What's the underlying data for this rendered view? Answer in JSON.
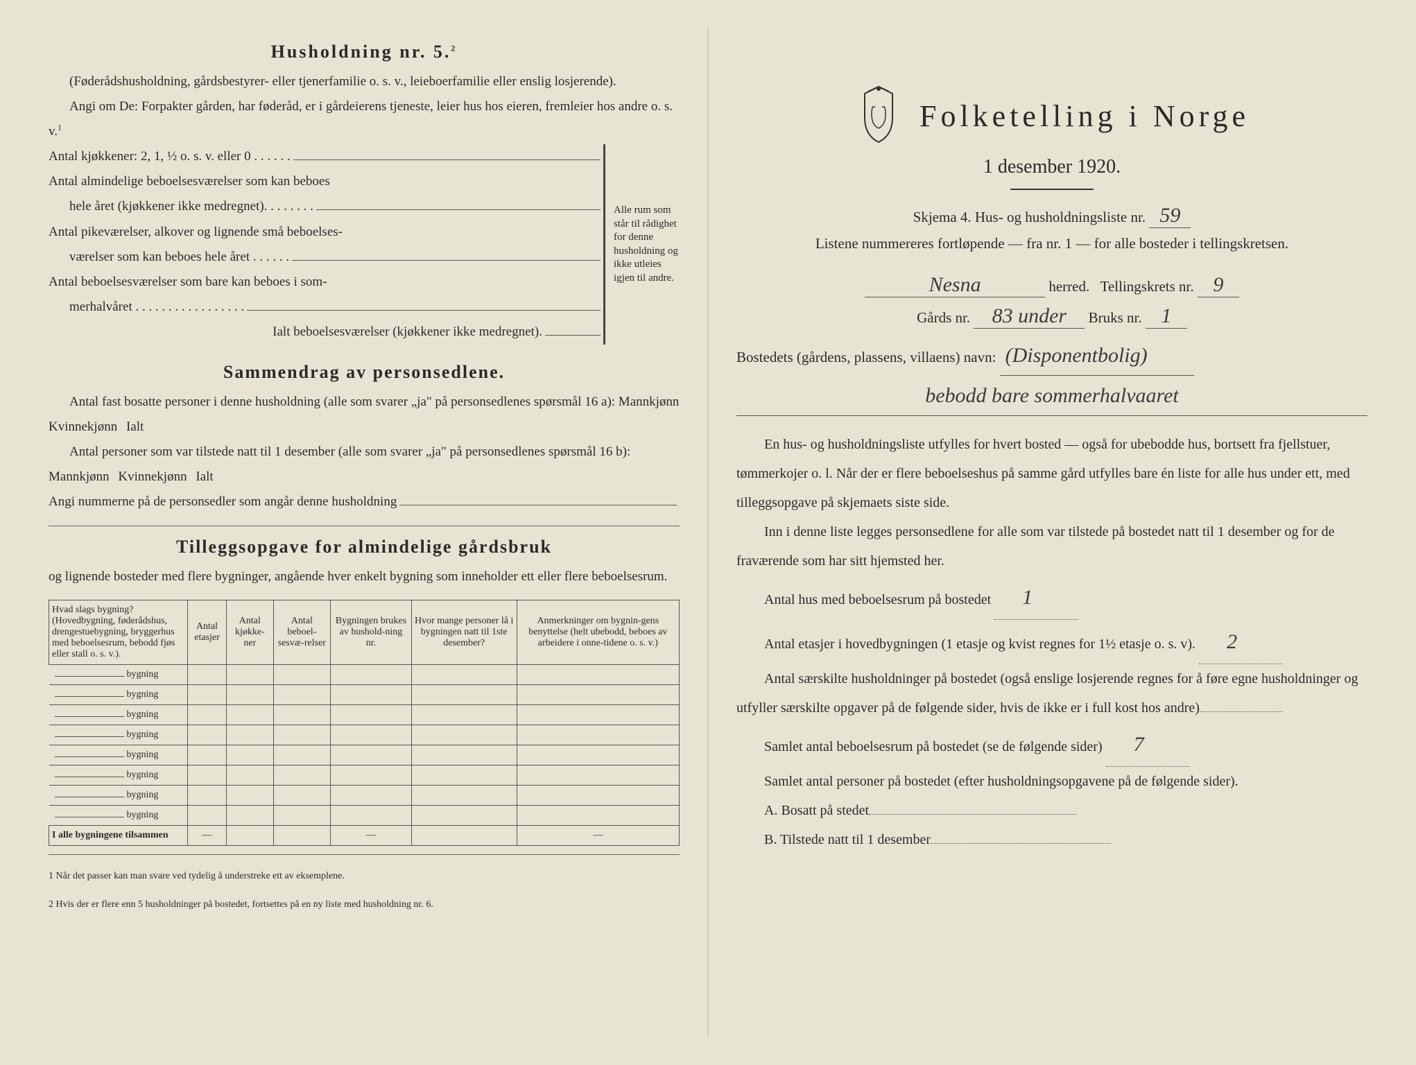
{
  "background_color": "#e8e4d4",
  "text_color": "#2a2a2a",
  "left": {
    "heading5": "Husholdning nr. 5.",
    "heading5_sup": "2",
    "note5": "(Føderådshusholdning, gårdsbestyrer- eller tjenerfamilie o. s. v., leieboerfamilie eller enslig losjerende).",
    "angi_om": "Angi om De: Forpakter gården, har føderåd, er i gårdeierens tjeneste, leier hus hos eieren, fremleier hos andre o. s. v.",
    "angi_sup": "1",
    "kjokkener": "Antal kjøkkener: 2, 1, ½ o. s. v. eller 0 . . . . . .",
    "almindelige1": "Antal almindelige beboelsesværelser som kan beboes",
    "almindelige2": "hele året (kjøkkener ikke medregnet). . . . . . . .",
    "pike1": "Antal pikeværelser, alkover og lignende små beboelses-",
    "pike2": "værelser som kan beboes hele året . . . . . .",
    "sommer1": "Antal beboelsesværelser som bare kan beboes i som-",
    "sommer2": "merhalvåret . . . . . . . . . . . . . . . . .",
    "ialt": "Ialt beboelsesværelser  (kjøkkener ikke medregnet).",
    "bracket_text": "Alle rum som står til rådighet for denne husholdning og ikke utleies igjen til andre.",
    "sammendrag": "Sammendrag av personsedlene.",
    "samm1": "Antal fast bosatte personer i denne husholdning (alle som svarer „ja\" på personsedlenes spørsmål 16 a): Mannkjønn",
    "kvinne": "Kvinnekjønn",
    "ialt_lbl": "Ialt",
    "samm2": "Antal personer som var tilstede natt til 1 desember (alle som svarer „ja\" på personsedlenes spørsmål 16 b): Mannkjønn",
    "angi_num": "Angi nummerne på de personsedler som angår denne husholdning",
    "tillegg_title": "Tilleggsopgave for almindelige gårdsbruk",
    "tillegg_sub": "og lignende bosteder med flere bygninger, angående hver enkelt bygning som inneholder ett eller flere beboelsesrum.",
    "table": {
      "headers": [
        "Hvad slags bygning?\n(Hovedbygning, føderådshus, drengestuebygning, bryggerhus med beboelsesrum, bebodd fjøs eller stall o. s. v.).",
        "Antal etasjer",
        "Antal kjøkke-ner",
        "Antal beboel-sesvæ-relser",
        "Bygningen brukes av hushold-ning nr.",
        "Hvor mange personer lå i bygningen natt til 1ste desember?",
        "Anmerkninger om bygnin-gens benyttelse (helt ubebodd, beboes av arbeidere i onne-tidene o. s. v.)"
      ],
      "row_label": "bygning",
      "rows": 8,
      "total_label": "I alle bygningene tilsammen",
      "total_cells": [
        "—",
        "",
        "",
        "—",
        "",
        "—"
      ]
    },
    "footnote1": "1   Når det passer kan man svare ved tydelig å understreke ett av eksemplene.",
    "footnote2": "2   Hvis der er flere enn 5 husholdninger på bostedet, fortsettes på en ny liste med husholdning nr. 6."
  },
  "right": {
    "title": "Folketelling  i  Norge",
    "date": "1 desember 1920.",
    "skjema": "Skjema 4.   Hus- og husholdningsliste nr.",
    "skjema_val": "59",
    "listene": "Listene nummereres fortløpende — fra nr. 1 — for alle bosteder i tellingskretsen.",
    "herred_val": "Nesna",
    "herred_lbl": "herred.",
    "tellingskrets": "Tellingskrets nr.",
    "tellingskrets_val": "9",
    "gards": "Gårds nr.",
    "gards_val": "83 under",
    "bruks": "Bruks nr.",
    "bruks_val": "1",
    "bosted_lbl": "Bostedets (gårdens, plassens, villaens) navn:",
    "bosted_val": "(Disponentbolig)",
    "bosted_val2": "bebodd bare sommerhalvaaret",
    "para1": "En hus- og husholdningsliste utfylles for hvert bosted — også for ubebodde hus, bortsett fra fjellstuer, tømmerkojer o. l.  Når der er flere beboelseshus på samme gård utfylles bare én liste for alle hus under ett, med tilleggsopgave på skjemaets siste side.",
    "para2": "Inn i denne liste legges personsedlene for alle som var tilstede på bostedet natt til 1 desember og for de fraværende som har sitt hjemsted her.",
    "antal_hus": "Antal hus med beboelsesrum på bostedet",
    "antal_hus_val": "1",
    "antal_etasjer": "Antal etasjer i hovedbygningen (1 etasje og kvist regnes for 1½ etasje o. s. v).",
    "antal_etasjer_val": "2",
    "antal_saer": "Antal særskilte husholdninger på bostedet (også enslige losjerende regnes for å føre egne husholdninger og utfyller særskilte opgaver på de følgende sider, hvis de ikke er i full kost hos andre)",
    "samlet_rum": "Samlet antal beboelsesrum på bostedet (se de følgende sider)",
    "samlet_rum_val": "7",
    "samlet_pers": "Samlet antal personer på bostedet (efter husholdningsopgavene på de følgende sider).",
    "a_label": "A.  Bosatt på stedet",
    "b_label": "B.  Tilstede natt til 1 desember"
  }
}
